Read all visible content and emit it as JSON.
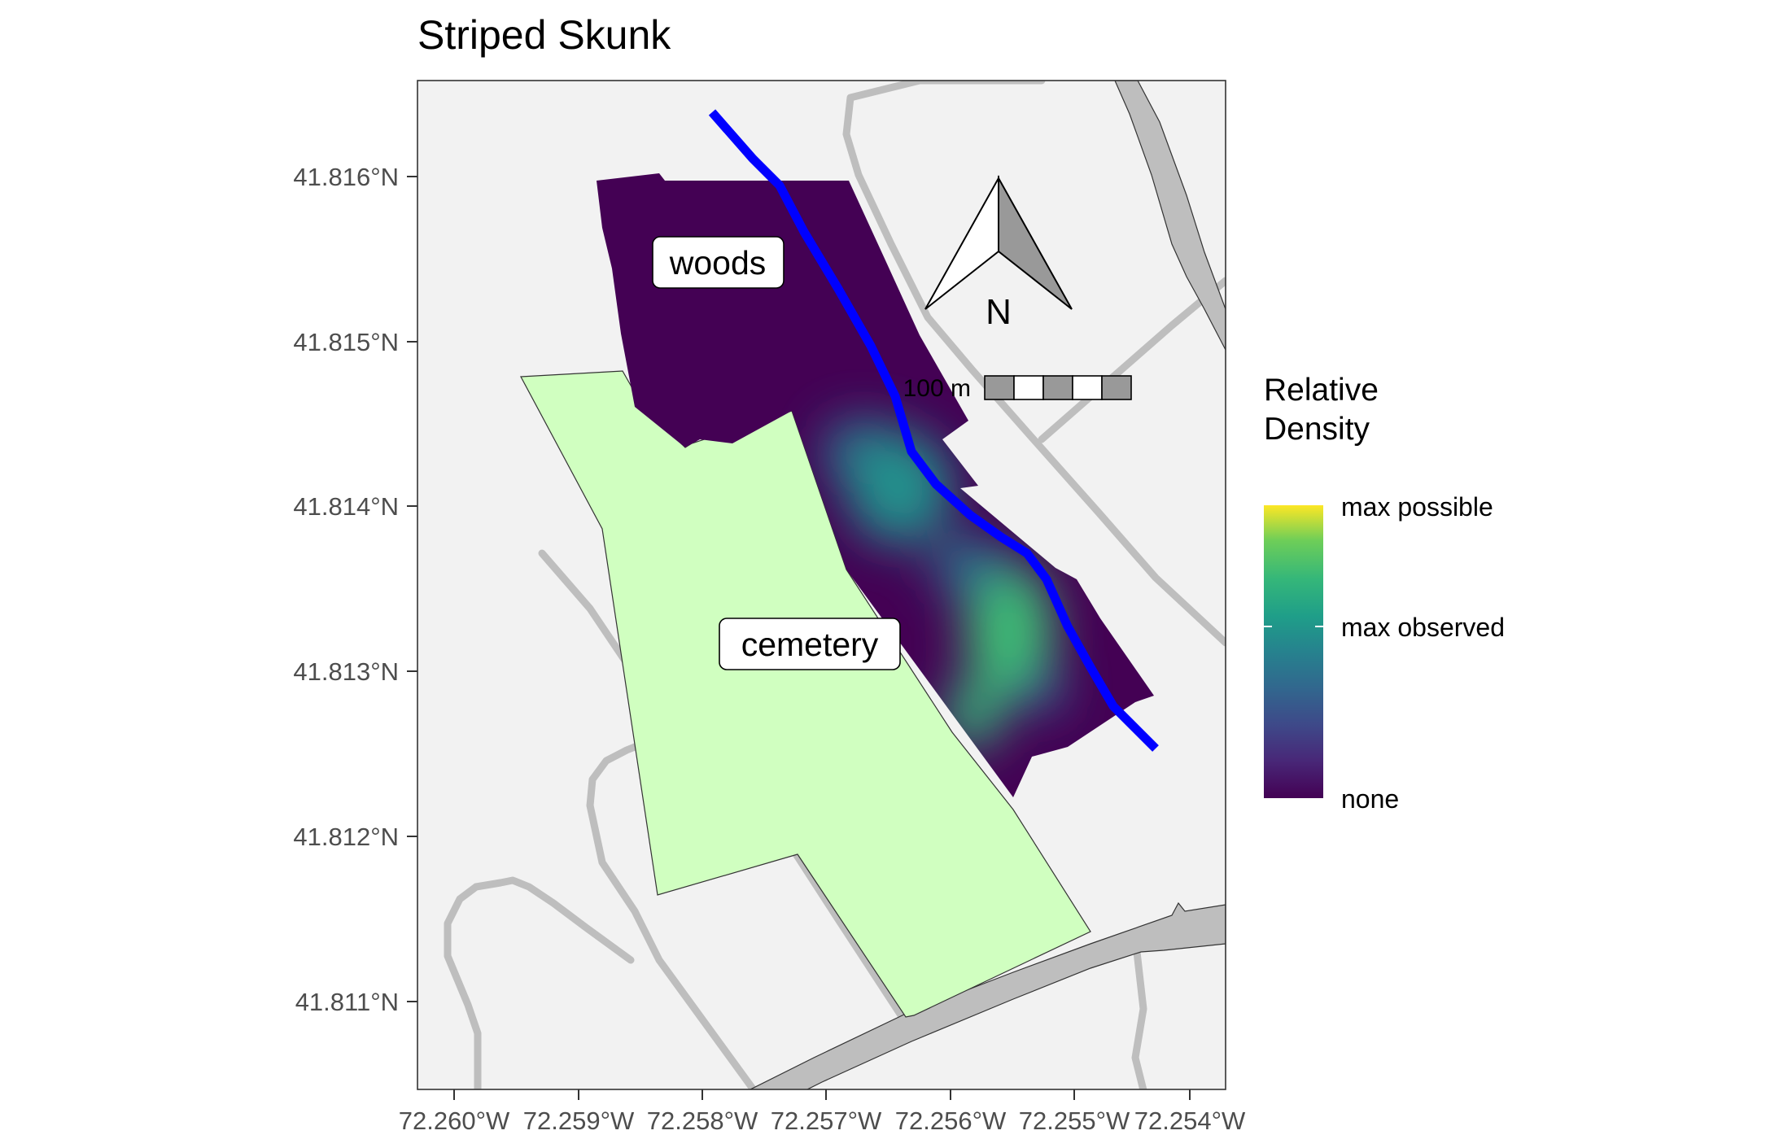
{
  "title": "Striped Skunk",
  "axes": {
    "x_ticks": [
      "72.260°W",
      "72.259°W",
      "72.258°W",
      "72.257°W",
      "72.256°W",
      "72.255°W",
      "72.254°W"
    ],
    "y_ticks": [
      "41.816°N",
      "41.815°N",
      "41.814°N",
      "41.813°N",
      "41.812°N",
      "41.811°N"
    ]
  },
  "labels": {
    "woods": "woods",
    "cemetery": "cemetery",
    "north": "N",
    "scale": "100 m"
  },
  "legend": {
    "title_line1": "Relative",
    "title_line2": "Density",
    "max_possible": "max possible",
    "max_observed": "max observed",
    "none": "none"
  },
  "colors": {
    "panel_bg": "#f2f2f2",
    "road": "#bebebe",
    "cemetery": "#d0ffc0",
    "low_density": "#440154",
    "mid_density": "#21918c",
    "high_density": "#fde725",
    "stream": "#0000ff"
  }
}
